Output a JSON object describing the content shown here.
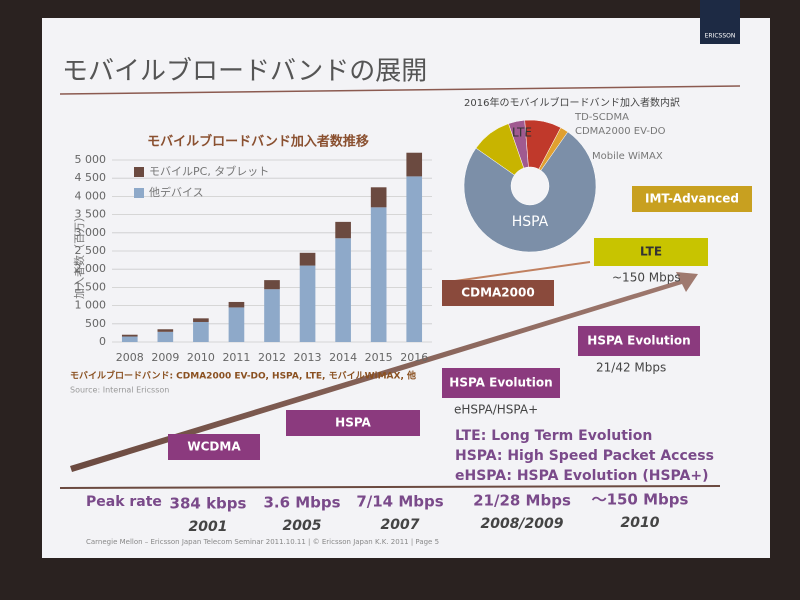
{
  "slide": {
    "title": "モバイルブロードバンドの展開",
    "logo": "ERICSSON",
    "footer": "Carnegie Mellon – Ericsson Japan Telecom Seminar 2011.10.11 | © Ericsson Japan K.K. 2011 | Page 5"
  },
  "chart_data": [
    {
      "type": "bar",
      "stacked": true,
      "title": "モバイルブロードバンド加入者数推移",
      "y_label": "加入者数（百万）",
      "categories": [
        "2008",
        "2009",
        "2010",
        "2011",
        "2012",
        "2013",
        "2014",
        "2015",
        "2016"
      ],
      "series": [
        {
          "name": "他デバイス",
          "color": "#8ea9c9",
          "values": [
            150,
            280,
            550,
            950,
            1450,
            2100,
            2850,
            3700,
            4550
          ]
        },
        {
          "name": "モバイルPC, タブレット",
          "color": "#6b4a40",
          "values": [
            50,
            70,
            100,
            150,
            250,
            350,
            450,
            550,
            650
          ]
        }
      ],
      "ylim": [
        0,
        5000
      ],
      "yticks": [
        0,
        500,
        {
          "value": 1000,
          "label": "1 000"
        },
        {
          "value": 1500,
          "label": "1 500"
        },
        {
          "value": 2000,
          "label": "2 000"
        },
        {
          "value": 2500,
          "label": "2 500"
        },
        {
          "value": 3000,
          "label": "3 000"
        },
        {
          "value": 3500,
          "label": "3 500"
        },
        {
          "value": 4000,
          "label": "4 000"
        },
        {
          "value": 4500,
          "label": "4 500"
        },
        {
          "value": 5000,
          "label": "5 000"
        }
      ],
      "grid": true,
      "note": "モバイルブロードバンド: CDMA2000 EV-DO, HSPA, LTE, モバイルWiMAX, 他",
      "source": "Source: Internal Ericsson"
    },
    {
      "type": "pie",
      "title": "2016年のモバイルブロードバンド加入者数内訳",
      "categories": [
        "LTE",
        "TD-SCDMA",
        "CDMA2000 EV-DO",
        "Mobile WiMAX",
        "HSPA"
      ],
      "values": [
        10,
        4,
        9,
        2,
        75
      ],
      "colors": [
        "#c8b400",
        "#a05a90",
        "#c0392b",
        "#e0a030",
        "#7c8fa8"
      ]
    }
  ],
  "evolution": {
    "boxes": [
      {
        "label": "WCDMA"
      },
      {
        "label": "HSPA"
      },
      {
        "label": "HSPA Evolution",
        "sub": "eHSPA/HSPA+"
      },
      {
        "label": "HSPA Evolution",
        "sub": "21/42 Mbps"
      },
      {
        "label": "CDMA2000"
      },
      {
        "label": "LTE",
        "sub": "~150 Mbps"
      },
      {
        "label": "IMT-Advanced"
      }
    ],
    "abbreviations": [
      "LTE: Long Term Evolution",
      "HSPA: High Speed Packet Access",
      "eHSPA: HSPA Evolution (HSPA+)"
    ],
    "peak_label": "Peak rate",
    "peaks": [
      {
        "rate": "384 kbps",
        "year": "2001"
      },
      {
        "rate": "3.6 Mbps",
        "year": "2005"
      },
      {
        "rate": "7/14 Mbps",
        "year": "2007"
      },
      {
        "rate": "21/28 Mbps",
        "year": "2008/2009"
      },
      {
        "rate": "～150 Mbps",
        "year": "2010"
      }
    ]
  }
}
